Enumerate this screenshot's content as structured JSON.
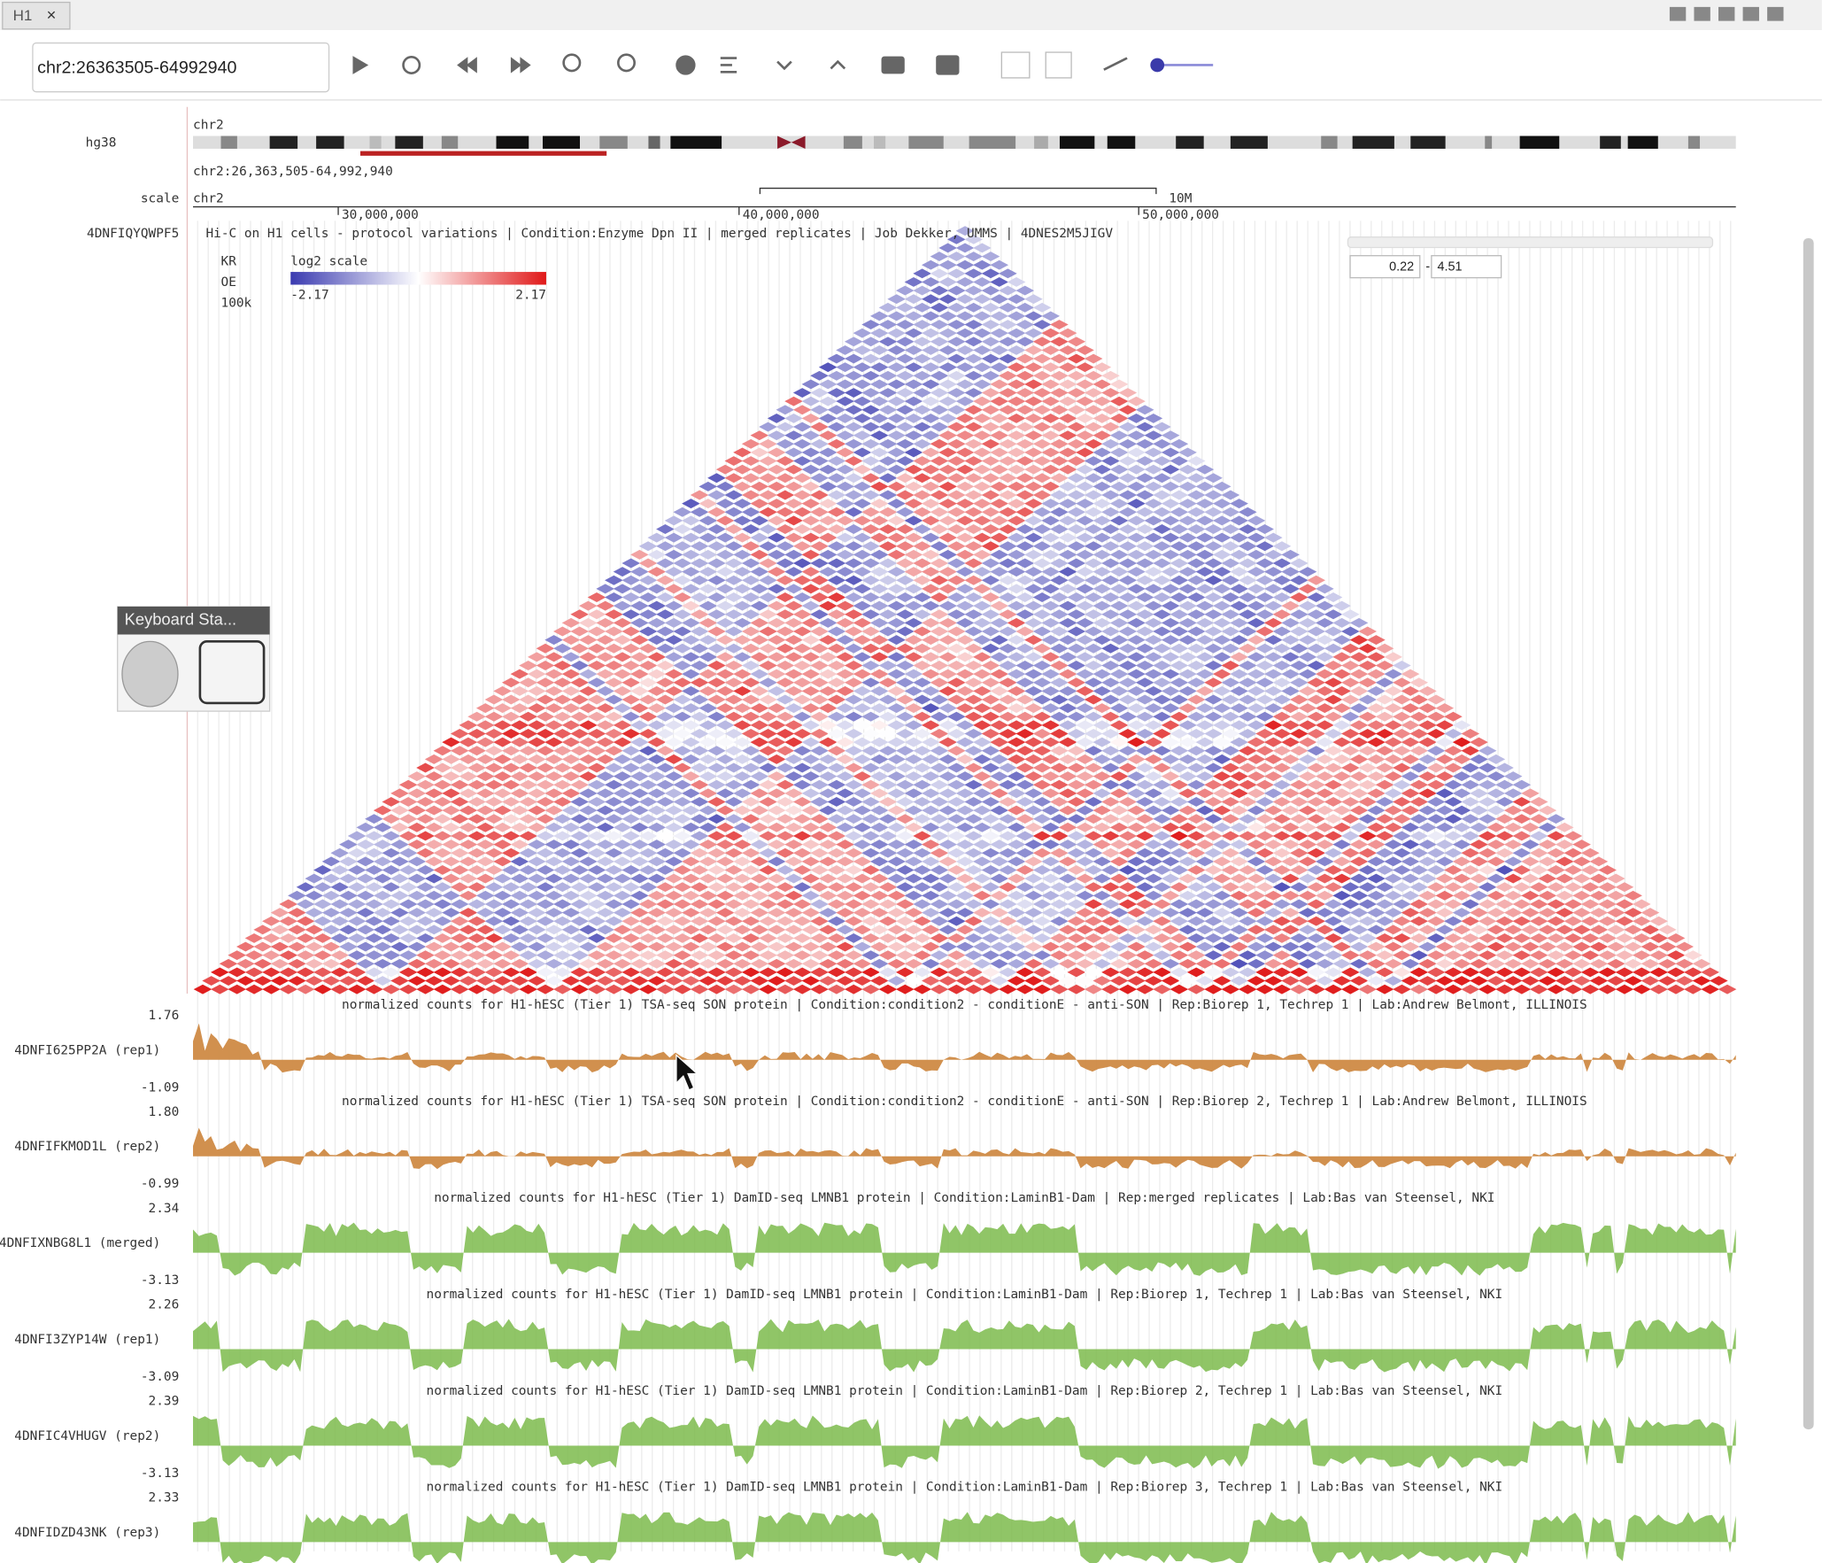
{
  "tab": "H1",
  "toolbar": {
    "location": "chr2:26363505-64992940"
  },
  "genome": {
    "assembly": "hg38",
    "chrom": "chr2",
    "range_label": "chr2:26,363,505-64,992,940"
  },
  "scale": {
    "label": "scale",
    "chrom": "chr2",
    "ticks": [
      "30,000,000",
      "40,000,000",
      "50,000,000"
    ],
    "span": "10M"
  },
  "heatmap": {
    "id": "4DNFIQYQWPF5",
    "title": "Hi-C on H1 cells - protocol variations | Condition:Enzyme Dpn II | merged replicates | Job Dekker, UMMS | 4DNES2M5JIGV",
    "norm": [
      "KR",
      "OE",
      "100k"
    ],
    "colorbar_label": "log2 scale",
    "min": "-2.17",
    "max": "2.17",
    "range": [
      "0.22",
      "4.51"
    ]
  },
  "keyboard_panel": "Keyboard Sta...",
  "tracks": [
    {
      "label": "4DNFI625PP2A (rep1)",
      "max": "1.76",
      "min": "-1.09",
      "color": "#cf8a45",
      "title": "normalized counts for H1-hESC (Tier 1) TSA-seq SON protein | Condition:condition2 - conditionE - anti-SON | Rep:Biorep 1, Techrep 1 | Lab:Andrew Belmont, ILLINOIS"
    },
    {
      "label": "4DNFIFKMOD1L (rep2)",
      "max": "1.80",
      "min": "-0.99",
      "color": "#cf8a45",
      "title": "normalized counts for H1-hESC (Tier 1) TSA-seq SON protein | Condition:condition2 - conditionE - anti-SON | Rep:Biorep 2, Techrep 1 | Lab:Andrew Belmont, ILLINOIS"
    },
    {
      "label": "4DNFIXNBG8L1 (merged)",
      "max": "2.34",
      "min": "-3.13",
      "color": "#7dbb4c",
      "title": "normalized counts for H1-hESC (Tier 1) DamID-seq LMNB1 protein | Condition:LaminB1-Dam | Rep:merged replicates | Lab:Bas van Steensel, NKI"
    },
    {
      "label": "4DNFI3ZYP14W (rep1)",
      "max": "2.26",
      "min": "-3.09",
      "color": "#7dbb4c",
      "title": "normalized counts for H1-hESC (Tier 1) DamID-seq LMNB1 protein | Condition:LaminB1-Dam | Rep:Biorep 1, Techrep 1 | Lab:Bas van Steensel, NKI"
    },
    {
      "label": "4DNFIC4VHUGV (rep2)",
      "max": "2.39",
      "min": "-3.13",
      "color": "#7dbb4c",
      "title": "normalized counts for H1-hESC (Tier 1) DamID-seq LMNB1 protein | Condition:LaminB1-Dam | Rep:Biorep 2, Techrep 1 | Lab:Bas van Steensel, NKI"
    },
    {
      "label": "4DNFIDZD43NK (rep3)",
      "max": "2.33",
      "color": "#7dbb4c",
      "title": "normalized counts for H1-hESC (Tier 1) DamID-seq LMNB1 protein | Condition:LaminB1-Dam | Rep:Biorep 3, Techrep 1 | Lab:Bas van Steensel, NKI"
    }
  ]
}
